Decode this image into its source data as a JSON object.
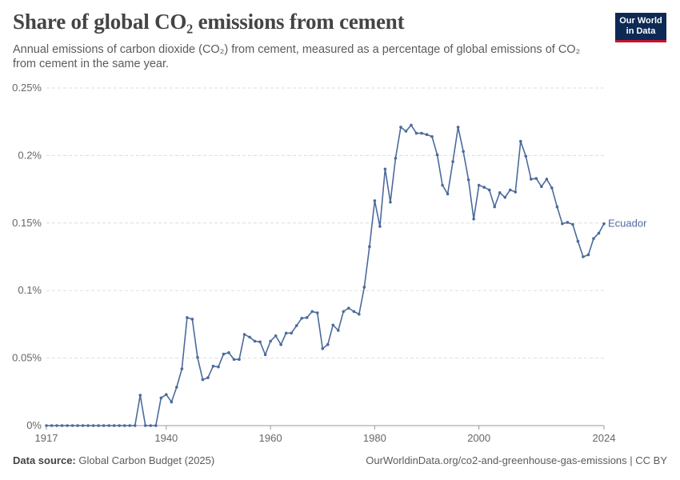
{
  "header": {
    "title": "Share of global CO₂ emissions from cement",
    "subtitle": "Annual emissions of carbon dioxide (CO₂) from cement, measured as a percentage of global emissions of CO₂ from cement in the same year.",
    "logo_line1": "Our World",
    "logo_line2": "in Data"
  },
  "footer": {
    "source_label": "Data source:",
    "source_value": "Global Carbon Budget (2025)",
    "url": "OurWorldinData.org/co2-and-greenhouse-gas-emissions | CC BY"
  },
  "colors": {
    "series": "#4c6a9c",
    "grid": "#dddddd",
    "axis": "#999999"
  },
  "chart_data": {
    "type": "line",
    "title": "Share of global CO₂ emissions from cement",
    "xlabel": "",
    "ylabel": "",
    "xlim": [
      1917,
      2024
    ],
    "ylim": [
      0,
      0.25
    ],
    "y_ticks": [
      {
        "value": 0,
        "label": "0%"
      },
      {
        "value": 0.05,
        "label": "0.05%"
      },
      {
        "value": 0.1,
        "label": "0.1%"
      },
      {
        "value": 0.15,
        "label": "0.15%"
      },
      {
        "value": 0.2,
        "label": "0.2%"
      },
      {
        "value": 0.25,
        "label": "0.25%"
      }
    ],
    "x_ticks": [
      {
        "value": 1917,
        "label": "1917"
      },
      {
        "value": 1940,
        "label": "1940"
      },
      {
        "value": 1960,
        "label": "1960"
      },
      {
        "value": 1980,
        "label": "1980"
      },
      {
        "value": 2000,
        "label": "2000"
      },
      {
        "value": 2024,
        "label": "2024"
      }
    ],
    "series": [
      {
        "name": "Ecuador",
        "x": [
          1917,
          1918,
          1919,
          1920,
          1921,
          1922,
          1923,
          1924,
          1925,
          1926,
          1927,
          1928,
          1929,
          1930,
          1931,
          1932,
          1933,
          1934,
          1935,
          1936,
          1937,
          1938,
          1939,
          1940,
          1941,
          1942,
          1943,
          1944,
          1945,
          1946,
          1947,
          1948,
          1949,
          1950,
          1951,
          1952,
          1953,
          1954,
          1955,
          1956,
          1957,
          1958,
          1959,
          1960,
          1961,
          1962,
          1963,
          1964,
          1965,
          1966,
          1967,
          1968,
          1969,
          1970,
          1971,
          1972,
          1973,
          1974,
          1975,
          1976,
          1977,
          1978,
          1979,
          1980,
          1981,
          1982,
          1983,
          1984,
          1985,
          1986,
          1987,
          1988,
          1989,
          1990,
          1991,
          1992,
          1993,
          1994,
          1995,
          1996,
          1997,
          1998,
          1999,
          2000,
          2001,
          2002,
          2003,
          2004,
          2005,
          2006,
          2007,
          2008,
          2009,
          2010,
          2011,
          2012,
          2013,
          2014,
          2015,
          2016,
          2017,
          2018,
          2019,
          2020,
          2021,
          2022,
          2023,
          2024
        ],
        "values": [
          0,
          0,
          0,
          0,
          0,
          0,
          0,
          0,
          0,
          0,
          0,
          0,
          0,
          0,
          0,
          0,
          0,
          0,
          0.0225,
          0,
          0,
          0,
          0.0205,
          0.023,
          0.0175,
          0.0285,
          0.042,
          0.08,
          0.0788,
          0.0505,
          0.034,
          0.0355,
          0.044,
          0.0435,
          0.053,
          0.054,
          0.049,
          0.049,
          0.0675,
          0.0655,
          0.0625,
          0.062,
          0.0525,
          0.0625,
          0.0665,
          0.06,
          0.0685,
          0.0685,
          0.074,
          0.0795,
          0.08,
          0.0845,
          0.0835,
          0.057,
          0.06,
          0.0745,
          0.0705,
          0.0845,
          0.087,
          0.0845,
          0.0825,
          0.1025,
          0.1325,
          0.1665,
          0.1475,
          0.19,
          0.1655,
          0.198,
          0.221,
          0.218,
          0.2225,
          0.2165,
          0.2165,
          0.2155,
          0.214,
          0.2005,
          0.178,
          0.1715,
          0.1955,
          0.221,
          0.203,
          0.182,
          0.153,
          0.178,
          0.1765,
          0.1745,
          0.162,
          0.1725,
          0.169,
          0.1745,
          0.173,
          0.2105,
          0.1995,
          0.1825,
          0.183,
          0.177,
          0.1825,
          0.176,
          0.162,
          0.1495,
          0.1505,
          0.149,
          0.1365,
          0.125,
          0.1265,
          0.1385,
          0.1425,
          0.1495
        ]
      }
    ]
  }
}
